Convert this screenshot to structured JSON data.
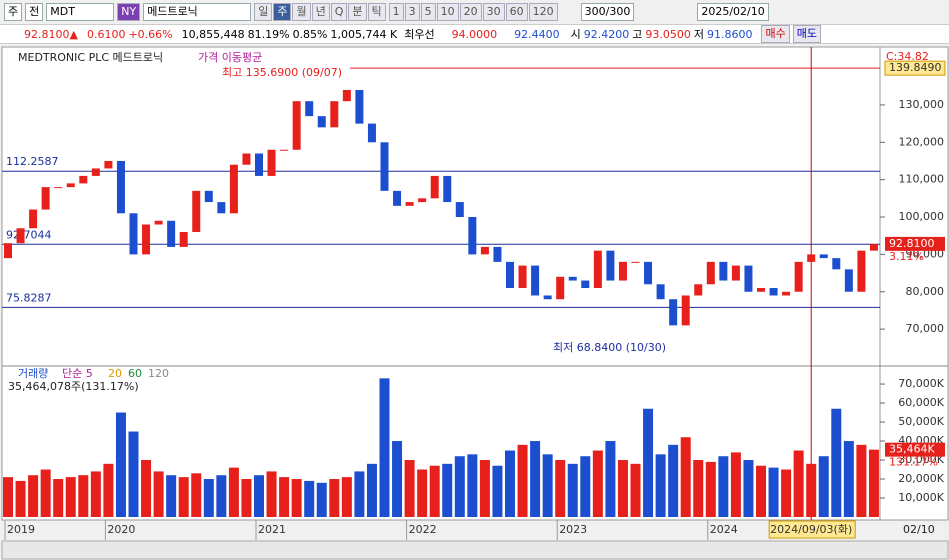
{
  "toolbar": {
    "market": "주",
    "scope": "전",
    "symbol": "MDT",
    "exchange": "NY",
    "name": "메드트로닉",
    "periods": [
      "일",
      "주",
      "월",
      "년",
      "Q",
      "분",
      "틱"
    ],
    "intervals": [
      "1",
      "3",
      "5",
      "10",
      "20",
      "30",
      "60",
      "120"
    ],
    "count": "300",
    "total": "/300",
    "date": "2025/02/10"
  },
  "info": {
    "price": "92.8100▲",
    "change": "0.6100",
    "change_pct": "+0.66%",
    "volume": "10,855,448",
    "volume_ratio": "81.19%",
    "turnover": "0.85%",
    "amount": "1,005,744 K",
    "best_label": "최우선",
    "ask": "94.0000",
    "bid": "92.4400",
    "open_label": "시",
    "open": "92.4200",
    "high_label": "고",
    "high": "93.0500",
    "low_label": "저",
    "low": "91.8600",
    "buy": "매수",
    "sell": "매도"
  },
  "chart_data": [
    {
      "type": "candlestick",
      "title": "MEDTRONIC PLC  메드트로닉",
      "subtitle": "가격 이동평균",
      "categories": [
        "2019",
        null,
        null,
        null,
        null,
        null,
        null,
        null,
        "2020",
        null,
        null,
        null,
        null,
        null,
        null,
        null,
        null,
        null,
        null,
        null,
        "2021",
        null,
        null,
        null,
        null,
        null,
        null,
        null,
        null,
        null,
        null,
        null,
        "2022",
        null,
        null,
        null,
        null,
        null,
        null,
        null,
        null,
        null,
        null,
        null,
        "2023",
        null,
        null,
        null,
        null,
        null,
        null,
        null,
        null,
        null,
        null,
        null,
        "2024",
        null,
        null,
        null,
        null,
        null,
        null,
        null,
        null,
        null,
        null,
        null,
        null,
        null
      ],
      "open": [
        89000,
        93000,
        97000,
        102000,
        108000,
        108000,
        109000,
        111000,
        113000,
        115000,
        101000,
        90000,
        98000,
        99000,
        92000,
        96000,
        107000,
        104000,
        101000,
        114000,
        117000,
        111000,
        118000,
        118000,
        131000,
        127000,
        124000,
        131000,
        134000,
        125000,
        120000,
        107000,
        103000,
        104000,
        105000,
        111000,
        104000,
        100000,
        90000,
        92000,
        88000,
        81000,
        87000,
        79000,
        78000,
        84000,
        83000,
        81000,
        91000,
        83000,
        88000,
        88000,
        82000,
        78000,
        71000,
        79000,
        82000,
        88000,
        83000,
        87000,
        80000,
        81000,
        79000,
        80000,
        88000,
        90000,
        89000,
        86000,
        80000,
        91000
      ],
      "close": [
        93000,
        97000,
        102000,
        108000,
        108000,
        109000,
        111000,
        113000,
        115000,
        101000,
        90000,
        98000,
        99000,
        92000,
        96000,
        107000,
        104000,
        101000,
        114000,
        117000,
        111000,
        118000,
        118000,
        131000,
        127000,
        124000,
        131000,
        134000,
        125000,
        120000,
        107000,
        103000,
        104000,
        105000,
        111000,
        104000,
        100000,
        90000,
        92000,
        88000,
        81000,
        87000,
        79000,
        78000,
        84000,
        83000,
        81000,
        91000,
        83000,
        88000,
        88000,
        82000,
        78000,
        71000,
        79000,
        82000,
        88000,
        83000,
        87000,
        80000,
        81000,
        79000,
        80000,
        88000,
        90000,
        89000,
        86000,
        80000,
        91000,
        92810
      ],
      "up_color": "#e8201c",
      "down_color": "#1c4fd0",
      "ylim": [
        61200,
        144700
      ],
      "yticks": [
        {
          "value": 70000,
          "label": "70,000"
        },
        {
          "value": 80000,
          "label": "80,000"
        },
        {
          "value": 90000,
          "label": "90,000"
        },
        {
          "value": 100000,
          "label": "100,000"
        },
        {
          "value": 110000,
          "label": "110,000"
        },
        {
          "value": 120000,
          "label": "120,000"
        },
        {
          "value": 130000,
          "label": "130,000"
        }
      ],
      "hlines": [
        {
          "value": 112258.7,
          "label": "112.2587"
        },
        {
          "value": 92704.4,
          "label": "92.7044"
        },
        {
          "value": 75828.7,
          "label": "75.8287"
        }
      ],
      "max_line": {
        "value": 139849,
        "label": "139.8490"
      },
      "last": {
        "value": 92810,
        "label": "92.8100"
      },
      "change_label": "3.11%",
      "c_label": "C:34.82",
      "annotations": [
        "최고 135.6900 (09/07)",
        "최저 68.8400 (10/30)"
      ]
    },
    {
      "type": "bar",
      "title": "거래량",
      "ma_labels": [
        "단순 5",
        "20",
        "60",
        "120"
      ],
      "subtitle": "35,464,078주(131.17%)",
      "values": [
        21000,
        19000,
        22000,
        25000,
        20000,
        21000,
        22000,
        24000,
        28000,
        55000,
        45000,
        30000,
        24000,
        22000,
        21000,
        23000,
        20000,
        22000,
        26000,
        20000,
        22000,
        24000,
        21000,
        20000,
        19000,
        18000,
        20000,
        21000,
        24000,
        28000,
        73000,
        40000,
        30000,
        25000,
        27000,
        28000,
        32000,
        33000,
        30000,
        27000,
        35000,
        38000,
        40000,
        33000,
        30000,
        28000,
        32000,
        35000,
        40000,
        30000,
        28000,
        57000,
        33000,
        38000,
        42000,
        30000,
        29000,
        32000,
        34000,
        30000,
        27000,
        26000,
        25000,
        35000,
        28000,
        32000,
        57000,
        40000,
        38000,
        35464
      ],
      "ylim": [
        0,
        77400
      ],
      "yticks": [
        {
          "value": 10000,
          "label": "10,000K"
        },
        {
          "value": 20000,
          "label": "20,000K"
        },
        {
          "value": 30000,
          "label": "30,000K"
        },
        {
          "value": 40000,
          "label": "40,000K"
        },
        {
          "value": 50000,
          "label": "50,000K"
        },
        {
          "value": 60000,
          "label": "60,000K"
        },
        {
          "value": 70000,
          "label": "70,000K"
        }
      ],
      "last": {
        "value": 35464,
        "label": "35,464K"
      },
      "ratio_label": "131.17%",
      "cursor_label": "2024/09/03(화)",
      "end_label": "02/10"
    }
  ]
}
